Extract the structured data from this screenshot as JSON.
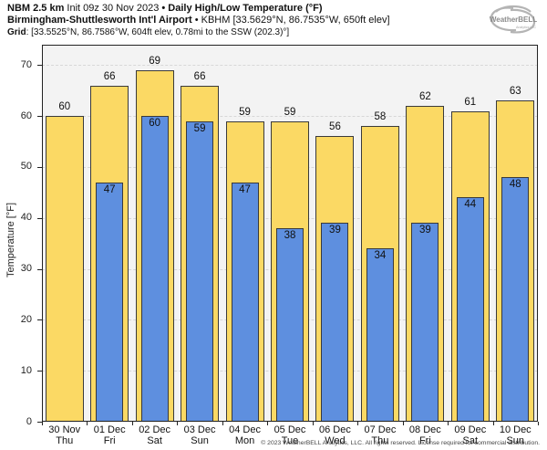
{
  "header": {
    "line1": {
      "model": "NBM 2.5 km",
      "init": " Init 09z 30 Nov 2023 ",
      "sep": "• ",
      "title": "Daily High/Low Temperature (°F)"
    },
    "line2": {
      "station": "Birmingham-Shuttlesworth Int'l Airport",
      "sep": " • ",
      "info": "KBHM [33.5629°N, 86.7535°W, 650ft elev]"
    },
    "line3": {
      "label": "Grid",
      "info": ": [33.5525°N, 86.7586°W, 604ft elev, 0.78mi to the SSW (202.3)°]"
    }
  },
  "logo": {
    "text_main": "WeatherBELL",
    "text_sub": "Analytics LLC"
  },
  "chart_data": {
    "type": "bar",
    "title": "Daily High/Low Temperature (°F)",
    "ylabel": "Temperature [°F]",
    "ylim": [
      0,
      74
    ],
    "yticks": [
      0,
      10,
      20,
      30,
      40,
      50,
      60,
      70
    ],
    "grid": "horizontal-dashed",
    "legend_position": "none",
    "categories": [
      "30 Nov",
      "01 Dec",
      "02 Dec",
      "03 Dec",
      "04 Dec",
      "05 Dec",
      "06 Dec",
      "07 Dec",
      "08 Dec",
      "09 Dec",
      "10 Dec"
    ],
    "weekdays": [
      "Thu",
      "Fri",
      "Sat",
      "Sun",
      "Mon",
      "Tue",
      "Wed",
      "Thu",
      "Fri",
      "Sat",
      "Sun"
    ],
    "series": [
      {
        "name": "Daily High",
        "color": "#fbd964",
        "values": [
          60,
          66,
          69,
          66,
          59,
          59,
          56,
          58,
          62,
          61,
          63
        ]
      },
      {
        "name": "Daily Low",
        "color": "#5e8fdf",
        "values": [
          null,
          47,
          60,
          59,
          47,
          38,
          39,
          34,
          39,
          44,
          48
        ]
      }
    ]
  },
  "footer": {
    "copyright": "© 2023 WeatherBELL Analytics, LLC. All rights reserved. License required for commercial distribution."
  },
  "colors": {
    "high": "#fbd964",
    "low": "#5e8fdf",
    "bar_border": "#3a3a3a",
    "plot_bg": "#f3f3f3",
    "grid_line": "#d7d7d7",
    "axis": "#222222"
  }
}
